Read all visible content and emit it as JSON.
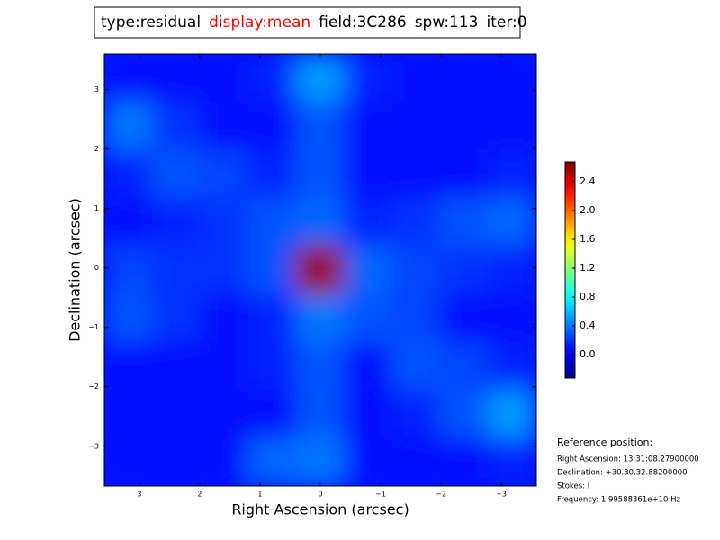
{
  "chart_data": {
    "type": "heatmap",
    "title_parts": [
      {
        "text": "type:residual",
        "color": "#000000"
      },
      {
        "text": "display:mean",
        "color": "#ff0000"
      },
      {
        "text": "field:3C286",
        "color": "#000000"
      },
      {
        "text": "spw:113",
        "color": "#000000"
      },
      {
        "text": "iter:0",
        "color": "#000000"
      }
    ],
    "x_label": "Right Ascension (arcsec)",
    "y_label": "Declination (arcsec)",
    "xlim": [
      3.58,
      -3.58
    ],
    "ylim": [
      -3.67,
      3.6
    ],
    "xticks": [
      3,
      2,
      1,
      0,
      {
        "value": -1,
        "label": "−1"
      },
      {
        "value": -2,
        "label": "−2"
      },
      {
        "value": -3,
        "label": "−3"
      }
    ],
    "yticks": [
      {
        "value": -3,
        "label": "−3"
      },
      {
        "value": -2,
        "label": "−2"
      },
      {
        "value": -1,
        "label": "−1"
      },
      0,
      1,
      2,
      3
    ],
    "z": [
      [
        0.1,
        0.1,
        0.1,
        0.15,
        0.5,
        0.15,
        0.1,
        0.1,
        0.1
      ],
      [
        0.4,
        0.2,
        0.1,
        0.1,
        0.3,
        0.1,
        0.1,
        0.1,
        0.1
      ],
      [
        0.15,
        0.3,
        0.25,
        0.15,
        0.3,
        0.1,
        0.1,
        0.1,
        0.15
      ],
      [
        0.1,
        0.15,
        0.2,
        0.3,
        0.35,
        0.15,
        0.2,
        0.3,
        0.35
      ],
      [
        0.25,
        0.2,
        0.2,
        0.3,
        2.6,
        0.35,
        0.25,
        0.2,
        0.15
      ],
      [
        0.3,
        0.2,
        0.1,
        0.15,
        0.4,
        0.3,
        0.25,
        0.1,
        0.1
      ],
      [
        0.1,
        0.1,
        0.1,
        0.15,
        0.3,
        0.1,
        0.3,
        0.25,
        0.15
      ],
      [
        0.1,
        0.1,
        0.1,
        0.1,
        0.3,
        0.1,
        0.15,
        0.3,
        0.5
      ],
      [
        0.1,
        0.1,
        0.1,
        0.35,
        0.4,
        0.1,
        0.1,
        0.1,
        0.15
      ]
    ],
    "colormap": "jet",
    "clim": [
      -0.325,
      2.675
    ],
    "cticks": [
      {
        "value": 0,
        "label": "0.0"
      },
      0.4,
      0.8,
      1.2,
      1.6,
      {
        "value": 2,
        "label": "2.0"
      },
      2.4
    ],
    "reference_title": "Reference position:",
    "reference_lines": [
      "Right Ascension: 13:31:08.27900000",
      "Declination: +30.30.32.88200000",
      "Stokes: I",
      "Frequency: 1.99588361e+10 Hz"
    ]
  }
}
